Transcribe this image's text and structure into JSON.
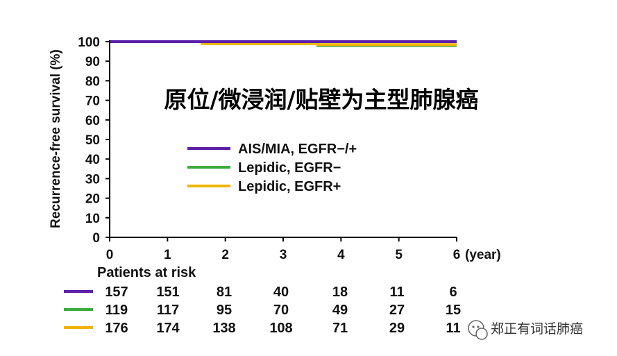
{
  "chart_data": {
    "type": "line",
    "title": "原位/微浸润/贴壁为主型肺腺癌",
    "ylabel": "Recurrence-free survival (%)",
    "xlabel": "",
    "x_unit_label": "(year)",
    "xlim": [
      0,
      6
    ],
    "ylim": [
      0,
      100
    ],
    "x_ticks": [
      "0",
      "1",
      "2",
      "3",
      "4",
      "5",
      "6"
    ],
    "y_ticks": [
      "0",
      "10",
      "20",
      "30",
      "40",
      "50",
      "60",
      "70",
      "80",
      "90",
      "100"
    ],
    "legend_position": "center",
    "series": [
      {
        "name": "AIS/MIA, EGFR−/+",
        "color": "#5b1fa8",
        "x": [
          0,
          1.6,
          2.6,
          6
        ],
        "y": [
          100,
          100,
          100,
          100
        ]
      },
      {
        "name": "Lepidic, EGFR−",
        "color": "#3daa3d",
        "x": [
          0,
          1.6,
          2.5,
          3.6,
          6
        ],
        "y": [
          100,
          100,
          100,
          98,
          98
        ]
      },
      {
        "name": "Lepidic, EGFR+",
        "color": "#f0b400",
        "x": [
          0,
          1.6,
          1.9,
          3.6,
          6
        ],
        "y": [
          100,
          99,
          99,
          98.5,
          98.5
        ]
      }
    ],
    "risk_table": {
      "label": "Patients at risk",
      "rows": [
        {
          "color": "#5b1fa8",
          "values": [
            "157",
            "151",
            "81",
            "40",
            "18",
            "11",
            "6"
          ]
        },
        {
          "color": "#3daa3d",
          "values": [
            "119",
            "117",
            "95",
            "70",
            "49",
            "27",
            "15"
          ]
        },
        {
          "color": "#f0b400",
          "values": [
            "176",
            "174",
            "138",
            "108",
            "71",
            "29",
            "11"
          ]
        }
      ]
    }
  },
  "watermark": {
    "text": "郑正有词话肺癌",
    "icon": "wechat-icon"
  }
}
